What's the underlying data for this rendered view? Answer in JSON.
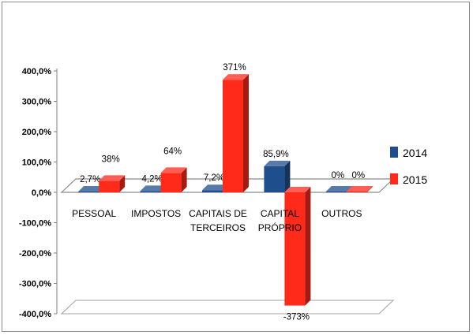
{
  "chart_data": {
    "type": "bar",
    "categories": [
      [
        "PESSOAL"
      ],
      [
        "IMPOSTOS"
      ],
      [
        "CAPITAIS DE",
        "TERCEIROS"
      ],
      [
        "CAPITAL",
        "PRÓPRIO"
      ],
      [
        "OUTROS"
      ]
    ],
    "series": [
      {
        "name": "2014",
        "values": [
          2.7,
          4.2,
          7.2,
          85.9,
          0
        ],
        "labels": [
          "2,7%",
          "4,2%",
          "7,2%",
          "85,9%",
          "0%"
        ],
        "color": "#1f4e8c"
      },
      {
        "name": "2015",
        "values": [
          38,
          64,
          371,
          -373,
          0
        ],
        "labels": [
          "38%",
          "64%",
          "371%",
          "-373%",
          "0%"
        ],
        "color": "#ff2a1a"
      }
    ],
    "ylim": [
      -400,
      400
    ],
    "yticks": [
      400,
      300,
      200,
      100,
      0,
      -100,
      -200,
      -300,
      -400
    ],
    "ytick_labels": [
      "400,0%",
      "300,0%",
      "200,0%",
      "100,0%",
      "0,0%",
      "-100,0%",
      "-200,0%",
      "-300,0%",
      "-400,0%"
    ],
    "legend_position": "right",
    "grid": false,
    "title": "",
    "xlabel": "",
    "ylabel": ""
  }
}
